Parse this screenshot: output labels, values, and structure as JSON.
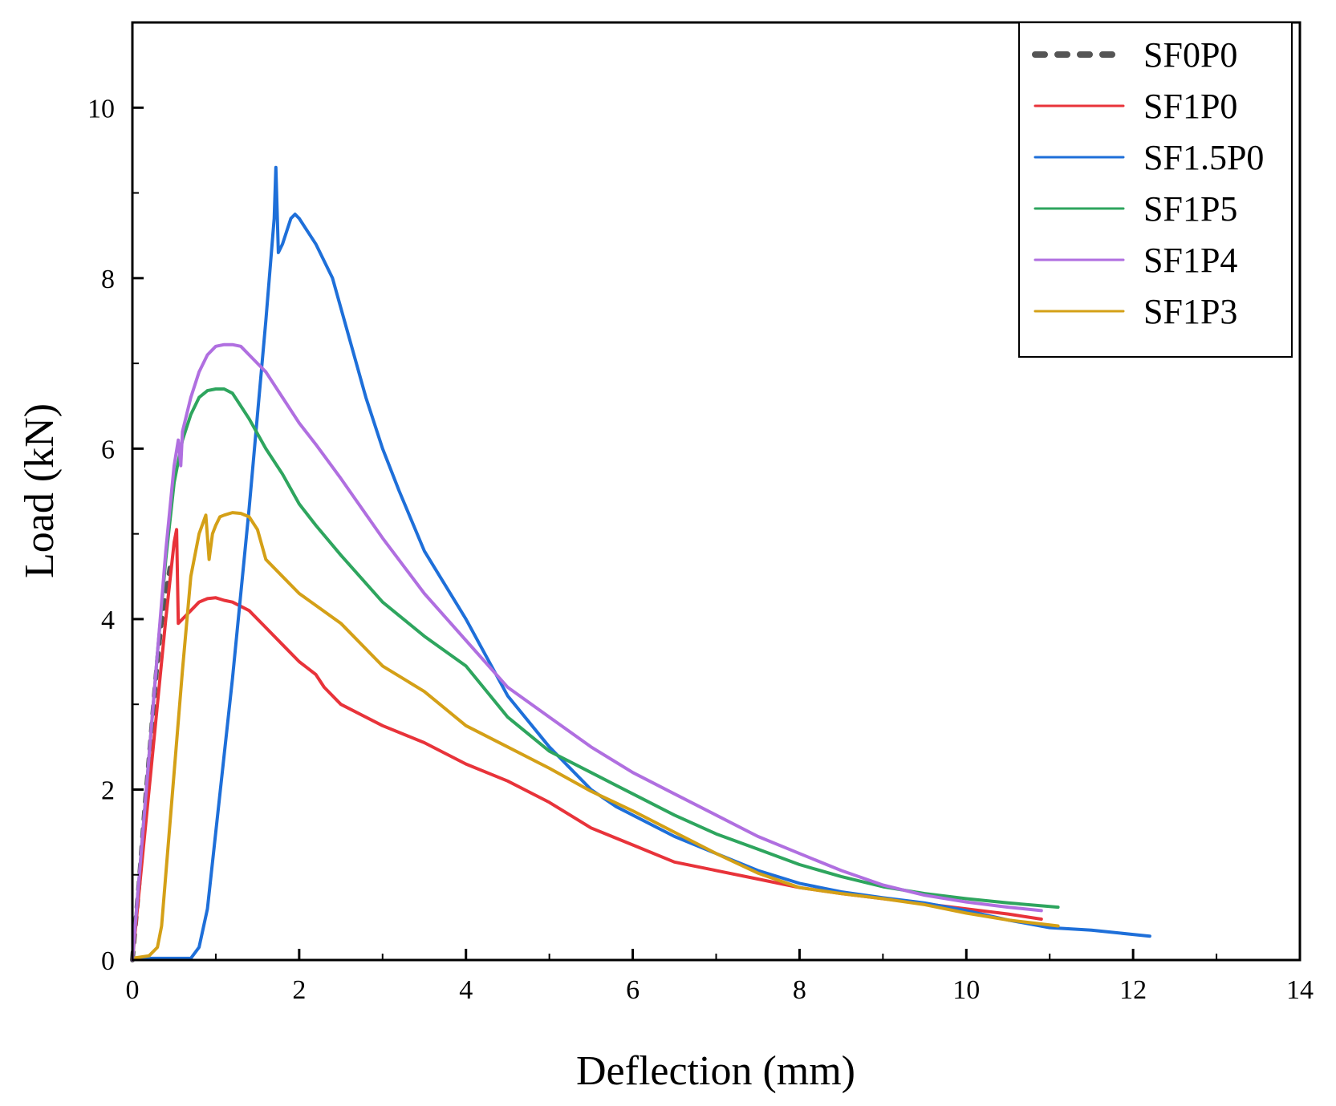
{
  "chart_data": {
    "type": "line",
    "title": "",
    "xlabel": "Deflection (mm)",
    "ylabel": "Load (kN)",
    "xlim": [
      0,
      14
    ],
    "ylim": [
      0,
      11
    ],
    "xticks": [
      0,
      2,
      4,
      6,
      8,
      10,
      12,
      14
    ],
    "yticks": [
      0,
      2,
      4,
      6,
      8,
      10
    ],
    "grid": false,
    "legend_position": "top-right",
    "series": [
      {
        "name": "SF0P0",
        "color": "#555555",
        "dashed": true,
        "x": [
          0.0,
          0.08,
          0.15,
          0.22,
          0.28,
          0.34,
          0.4,
          0.45
        ],
        "y": [
          0.0,
          0.9,
          1.8,
          2.6,
          3.3,
          3.9,
          4.3,
          4.6
        ]
      },
      {
        "name": "SF1P0",
        "color": "#e8333a",
        "dashed": false,
        "x": [
          0.0,
          0.1,
          0.2,
          0.3,
          0.4,
          0.5,
          0.53,
          0.55,
          0.6,
          0.7,
          0.8,
          0.9,
          1.0,
          1.1,
          1.2,
          1.4,
          1.6,
          1.8,
          2.0,
          2.2,
          2.3,
          2.5,
          3.0,
          3.5,
          4.0,
          4.5,
          5.0,
          5.5,
          6.0,
          6.5,
          7.0,
          7.5,
          8.0,
          8.5,
          9.0,
          9.5,
          10.0,
          10.5,
          10.9
        ],
        "y": [
          0.0,
          1.0,
          2.0,
          3.0,
          4.0,
          4.9,
          5.05,
          3.95,
          4.0,
          4.1,
          4.2,
          4.24,
          4.25,
          4.22,
          4.2,
          4.1,
          3.9,
          3.7,
          3.5,
          3.35,
          3.2,
          3.0,
          2.75,
          2.55,
          2.3,
          2.1,
          1.85,
          1.55,
          1.35,
          1.15,
          1.05,
          0.95,
          0.85,
          0.78,
          0.72,
          0.66,
          0.6,
          0.54,
          0.48
        ]
      },
      {
        "name": "SF1.5P0",
        "color": "#1e6fd9",
        "dashed": false,
        "x": [
          0.0,
          0.5,
          0.7,
          0.8,
          0.9,
          1.0,
          1.1,
          1.2,
          1.3,
          1.4,
          1.5,
          1.6,
          1.7,
          1.72,
          1.75,
          1.8,
          1.9,
          1.95,
          2.0,
          2.2,
          2.4,
          2.6,
          2.8,
          3.0,
          3.2,
          3.5,
          4.0,
          4.5,
          5.0,
          5.5,
          5.8,
          6.0,
          6.5,
          7.0,
          7.5,
          8.0,
          8.5,
          9.0,
          9.5,
          10.0,
          10.5,
          11.0,
          11.5,
          12.0,
          12.2
        ],
        "y": [
          0.02,
          0.02,
          0.02,
          0.15,
          0.6,
          1.5,
          2.4,
          3.3,
          4.3,
          5.3,
          6.4,
          7.5,
          8.7,
          9.3,
          8.3,
          8.4,
          8.7,
          8.75,
          8.7,
          8.4,
          8.0,
          7.3,
          6.6,
          6.0,
          5.5,
          4.8,
          4.0,
          3.1,
          2.5,
          2.0,
          1.8,
          1.7,
          1.45,
          1.25,
          1.05,
          0.9,
          0.8,
          0.73,
          0.67,
          0.58,
          0.47,
          0.38,
          0.35,
          0.3,
          0.28
        ]
      },
      {
        "name": "SF1P5",
        "color": "#2ea55e",
        "dashed": false,
        "x": [
          0.0,
          0.1,
          0.2,
          0.3,
          0.4,
          0.5,
          0.6,
          0.7,
          0.8,
          0.9,
          1.0,
          1.1,
          1.2,
          1.3,
          1.4,
          1.6,
          1.8,
          2.0,
          2.2,
          2.5,
          3.0,
          3.5,
          4.0,
          4.5,
          5.0,
          5.5,
          6.0,
          6.5,
          7.0,
          7.5,
          8.0,
          8.5,
          9.0,
          9.5,
          10.0,
          10.5,
          11.1
        ],
        "y": [
          0.0,
          1.2,
          2.4,
          3.6,
          4.7,
          5.6,
          6.1,
          6.4,
          6.6,
          6.68,
          6.7,
          6.7,
          6.65,
          6.5,
          6.35,
          6.0,
          5.7,
          5.35,
          5.1,
          4.75,
          4.2,
          3.8,
          3.45,
          2.85,
          2.45,
          2.2,
          1.95,
          1.7,
          1.48,
          1.3,
          1.12,
          0.98,
          0.86,
          0.78,
          0.72,
          0.67,
          0.62
        ]
      },
      {
        "name": "SF1P4",
        "color": "#b06fe0",
        "dashed": false,
        "x": [
          0.0,
          0.1,
          0.2,
          0.3,
          0.4,
          0.5,
          0.55,
          0.58,
          0.6,
          0.7,
          0.8,
          0.9,
          1.0,
          1.1,
          1.2,
          1.3,
          1.4,
          1.5,
          1.6,
          1.8,
          2.0,
          2.2,
          2.5,
          3.0,
          3.5,
          4.0,
          4.5,
          5.0,
          5.5,
          6.0,
          6.5,
          7.0,
          7.5,
          8.0,
          8.5,
          9.0,
          9.5,
          10.0,
          10.5,
          10.9
        ],
        "y": [
          0.0,
          1.2,
          2.4,
          3.6,
          4.8,
          5.8,
          6.1,
          5.8,
          6.2,
          6.6,
          6.9,
          7.1,
          7.2,
          7.22,
          7.22,
          7.2,
          7.1,
          7.0,
          6.9,
          6.6,
          6.3,
          6.05,
          5.65,
          4.95,
          4.3,
          3.75,
          3.2,
          2.85,
          2.5,
          2.2,
          1.95,
          1.7,
          1.45,
          1.25,
          1.05,
          0.88,
          0.76,
          0.68,
          0.62,
          0.58
        ]
      },
      {
        "name": "SF1P3",
        "color": "#d4a017",
        "dashed": false,
        "x": [
          0.0,
          0.2,
          0.3,
          0.35,
          0.4,
          0.5,
          0.6,
          0.7,
          0.8,
          0.88,
          0.92,
          0.96,
          1.0,
          1.05,
          1.1,
          1.2,
          1.3,
          1.4,
          1.5,
          1.6,
          1.8,
          2.0,
          2.5,
          3.0,
          3.5,
          4.0,
          4.5,
          5.0,
          5.5,
          6.0,
          6.5,
          7.0,
          7.5,
          8.0,
          8.5,
          9.0,
          9.5,
          10.0,
          10.5,
          11.1
        ],
        "y": [
          0.02,
          0.05,
          0.15,
          0.4,
          1.0,
          2.2,
          3.4,
          4.5,
          5.0,
          5.22,
          4.7,
          5.0,
          5.1,
          5.2,
          5.22,
          5.25,
          5.24,
          5.2,
          5.05,
          4.7,
          4.5,
          4.3,
          3.95,
          3.45,
          3.15,
          2.75,
          2.5,
          2.25,
          1.98,
          1.75,
          1.5,
          1.25,
          1.02,
          0.85,
          0.78,
          0.72,
          0.65,
          0.55,
          0.47,
          0.4
        ]
      }
    ]
  }
}
